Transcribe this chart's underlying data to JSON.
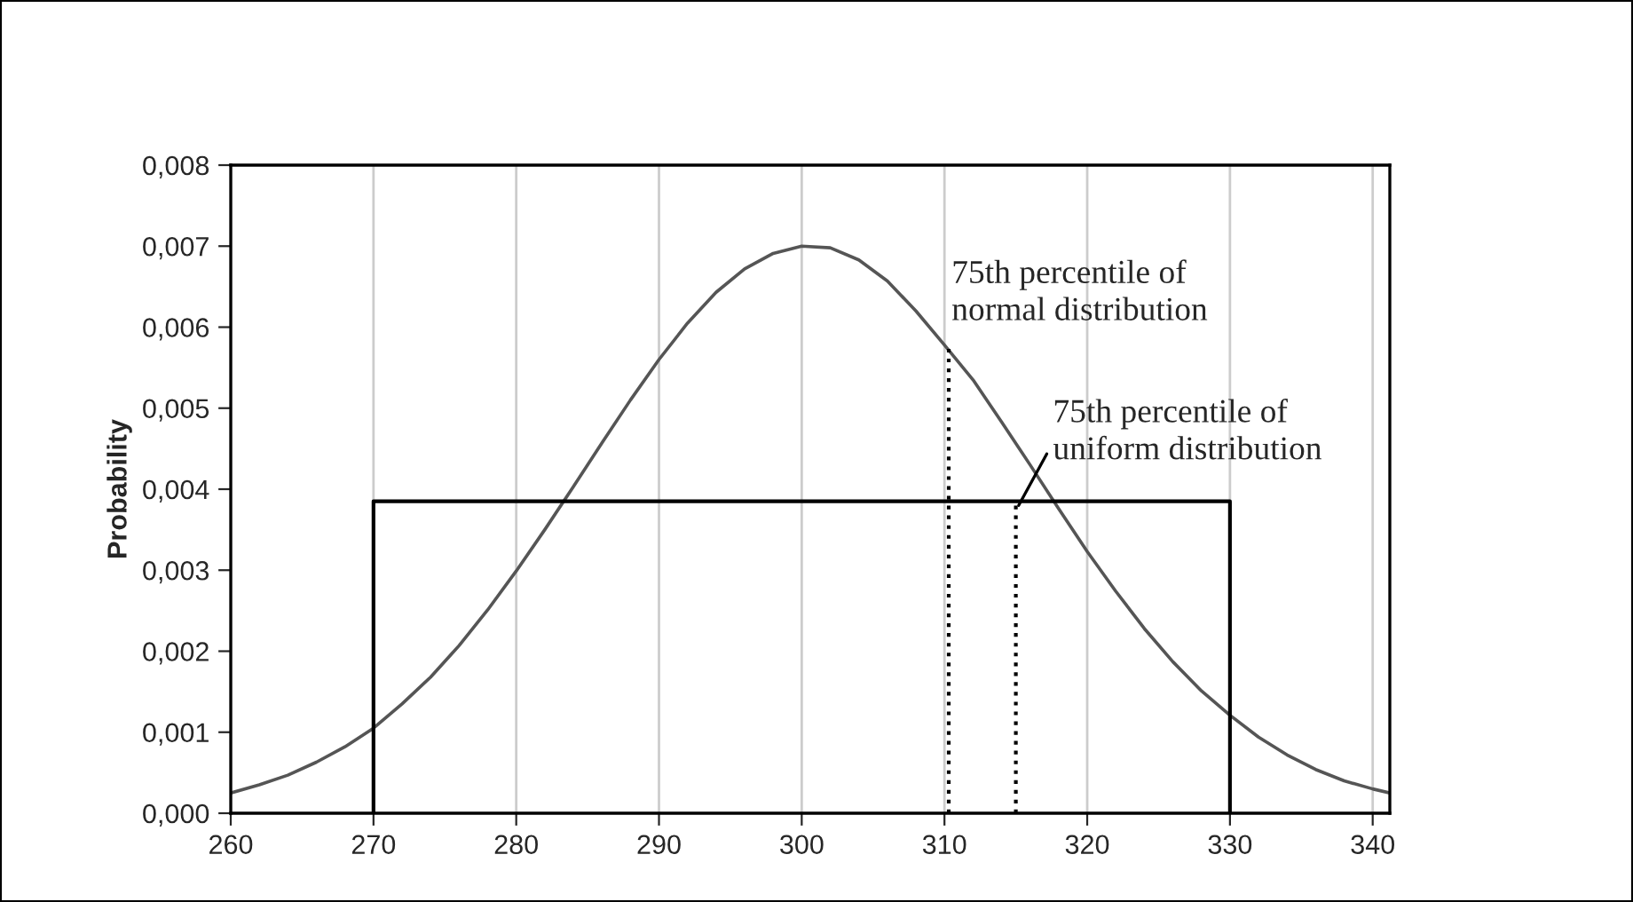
{
  "chart_data": {
    "type": "line",
    "ylabel": "Probability",
    "xlim": [
      260,
      341.2
    ],
    "xticks": [
      260,
      270,
      280,
      290,
      300,
      310,
      320,
      330,
      340
    ],
    "ylim": [
      0,
      0.008
    ],
    "yticks": [
      {
        "value": 0,
        "label": "0,000"
      },
      {
        "value": 0.001,
        "label": "0,001"
      },
      {
        "value": 0.002,
        "label": "0,002"
      },
      {
        "value": 0.003,
        "label": "0,003"
      },
      {
        "value": 0.004,
        "label": "0,004"
      },
      {
        "value": 0.005,
        "label": "0,005"
      },
      {
        "value": 0.006,
        "label": "0,006"
      },
      {
        "value": 0.007,
        "label": "0,007"
      },
      {
        "value": 0.008,
        "label": "0,008"
      }
    ],
    "grid": "x",
    "legend": false,
    "marker": "none",
    "series": [
      {
        "color": "#555555",
        "line_style": "solid",
        "x": [
          260,
          262,
          264,
          266,
          268,
          270,
          272,
          274,
          276,
          278,
          280,
          282,
          284,
          286,
          288,
          290,
          292,
          294,
          296,
          298,
          300,
          302,
          304,
          306,
          308,
          310,
          312,
          314,
          316,
          318,
          320,
          322,
          324,
          326,
          328,
          330,
          332,
          334,
          336,
          338,
          340,
          341.2
        ],
        "values": [
          0.00025,
          0.00035,
          0.00047,
          0.00063,
          0.00082,
          0.00105,
          0.00135,
          0.00168,
          0.00207,
          0.00251,
          0.00299,
          0.0035,
          0.00403,
          0.00457,
          0.0051,
          0.0056,
          0.00605,
          0.00643,
          0.00672,
          0.00691,
          0.007,
          0.00698,
          0.00683,
          0.00657,
          0.0062,
          0.00578,
          0.00535,
          0.00483,
          0.0043,
          0.00376,
          0.00323,
          0.00274,
          0.00228,
          0.00187,
          0.00151,
          0.00121,
          0.00094,
          0.00072,
          0.00054,
          0.0004,
          0.0003,
          0.00025
        ]
      },
      {
        "color": "#000000",
        "line_style": "solid",
        "x": [
          270,
          270,
          330,
          330
        ],
        "values": [
          0,
          0.00385,
          0.00385,
          0
        ]
      },
      {
        "color": "#000000",
        "line_style": "dotted",
        "x": [
          310.3,
          310.3
        ],
        "values": [
          0,
          0.0058
        ]
      },
      {
        "color": "#000000",
        "line_style": "dotted",
        "x": [
          315,
          315
        ],
        "values": [
          0,
          0.0038
        ]
      }
    ],
    "annotations": [
      {
        "text": "75th percentile of\nnormal distribution",
        "x": 310.3,
        "y": 0.0058
      },
      {
        "text": "75th percentile of\nuniform distribution",
        "x": 315.2,
        "y": 0.0038
      }
    ]
  }
}
